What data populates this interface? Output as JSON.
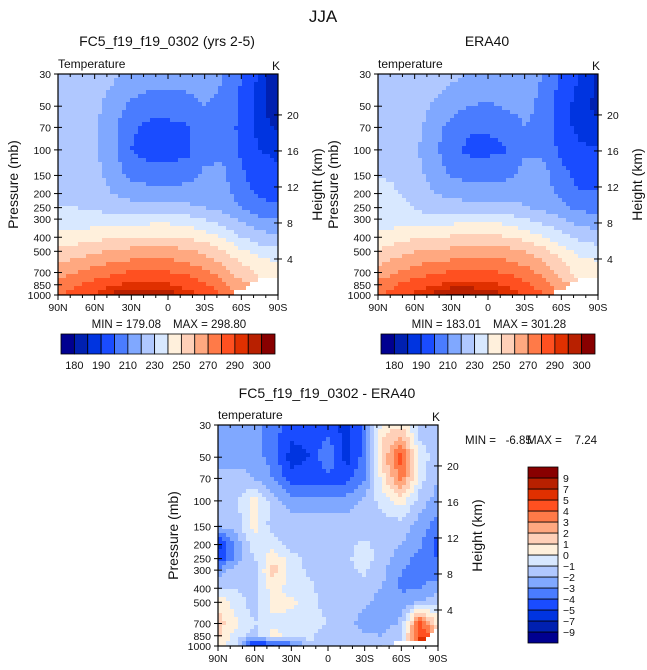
{
  "figure_title": "JJA",
  "palette": [
    "#000090",
    "#0020b0",
    "#0034e0",
    "#1a4cff",
    "#4a7cff",
    "#80a8ff",
    "#b0c8ff",
    "#d8e8ff",
    "#fff0dc",
    "#ffd0b8",
    "#ffa880",
    "#ff7a48",
    "#ff5020",
    "#e03000",
    "#b82000",
    "#880000"
  ],
  "chart_data": [
    {
      "type": "heatmap",
      "title": "FC5_f19_f19_0302 (yrs 2-5)",
      "left_label": "Temperature",
      "units": "K",
      "ylabel": "Pressure (mb)",
      "y2label": "Height (km)",
      "x_ticks": [
        {
          "lat": 90,
          "label": "90N"
        },
        {
          "lat": 60,
          "label": "60N"
        },
        {
          "lat": 30,
          "label": "30N"
        },
        {
          "lat": 0,
          "label": "0"
        },
        {
          "lat": -30,
          "label": "30S"
        },
        {
          "lat": -60,
          "label": "60S"
        },
        {
          "lat": -90,
          "label": "90S"
        }
      ],
      "y_ticks": [
        "30",
        "50",
        "70",
        "100",
        "150",
        "200",
        "250",
        "300",
        "400",
        "500",
        "700",
        "850",
        "1000"
      ],
      "y2_ticks": [
        "4",
        "8",
        "12",
        "16",
        "20"
      ],
      "min_text": "MIN = 179.08",
      "max_text": "MAX = 298.80",
      "levels": [
        180,
        185,
        190,
        200,
        210,
        220,
        230,
        240,
        250,
        260,
        270,
        280,
        290,
        295,
        300
      ],
      "colorbar_labels": [
        "180",
        "190",
        "210",
        "230",
        "250",
        "270",
        "290",
        "300"
      ],
      "colorbar_label_every": 2,
      "lats": [
        90,
        75,
        60,
        45,
        30,
        15,
        0,
        -15,
        -30,
        -45,
        -60,
        -75,
        -90
      ],
      "pressures": [
        30,
        50,
        70,
        100,
        150,
        200,
        250,
        300,
        400,
        500,
        700,
        850,
        1000
      ],
      "values": [
        [
          226,
          226,
          225,
          222,
          218,
          215,
          215,
          215,
          215,
          210,
          200,
          188,
          180
        ],
        [
          226,
          225,
          223,
          215,
          208,
          205,
          205,
          206,
          210,
          208,
          198,
          186,
          182
        ],
        [
          227,
          225,
          222,
          212,
          202,
          197,
          197,
          198,
          207,
          207,
          197,
          187,
          184
        ],
        [
          228,
          226,
          222,
          212,
          200,
          195,
          195,
          197,
          207,
          208,
          198,
          190,
          188
        ],
        [
          228,
          227,
          224,
          215,
          208,
          205,
          205,
          206,
          212,
          212,
          202,
          194,
          192
        ],
        [
          229,
          228,
          226,
          220,
          216,
          214,
          214,
          215,
          216,
          214,
          205,
          198,
          196
        ],
        [
          230,
          230,
          229,
          226,
          224,
          223,
          223,
          222,
          220,
          217,
          210,
          204,
          202
        ],
        [
          232,
          233,
          234,
          234,
          235,
          236,
          236,
          234,
          230,
          224,
          218,
          212,
          210
        ],
        [
          243,
          245,
          247,
          249,
          251,
          251,
          251,
          249,
          245,
          239,
          230,
          224,
          222
        ],
        [
          252,
          255,
          258,
          261,
          263,
          264,
          264,
          262,
          258,
          252,
          242,
          236,
          234
        ],
        [
          266,
          270,
          274,
          278,
          281,
          282,
          281,
          278,
          272,
          265,
          255,
          249,
          247
        ],
        [
          274,
          279,
          284,
          289,
          292,
          292,
          291,
          287,
          281,
          273,
          262,
          null,
          null
        ],
        [
          280,
          285,
          291,
          297,
          299,
          298,
          298,
          294,
          288,
          280,
          null,
          null,
          null
        ]
      ]
    },
    {
      "type": "heatmap",
      "title": "ERA40",
      "left_label": "temperature",
      "units": "K",
      "ylabel": "Pressure (mb)",
      "y2label": "Height (km)",
      "x_ticks": [
        {
          "lat": 90,
          "label": "90N"
        },
        {
          "lat": 60,
          "label": "60N"
        },
        {
          "lat": 30,
          "label": "30N"
        },
        {
          "lat": 0,
          "label": "0"
        },
        {
          "lat": -30,
          "label": "30S"
        },
        {
          "lat": -60,
          "label": "60S"
        },
        {
          "lat": -90,
          "label": "90S"
        }
      ],
      "y_ticks": [
        "30",
        "50",
        "70",
        "100",
        "150",
        "200",
        "250",
        "300",
        "400",
        "500",
        "700",
        "850",
        "1000"
      ],
      "y2_ticks": [
        "4",
        "8",
        "12",
        "16",
        "20"
      ],
      "min_text": "MIN = 183.01",
      "max_text": "MAX = 301.28",
      "levels": [
        180,
        185,
        190,
        200,
        210,
        220,
        230,
        240,
        250,
        260,
        270,
        280,
        290,
        295,
        300
      ],
      "colorbar_labels": [
        "180",
        "190",
        "210",
        "230",
        "250",
        "270",
        "290",
        "300"
      ],
      "colorbar_label_every": 2,
      "lats": [
        90,
        75,
        60,
        45,
        30,
        15,
        0,
        -15,
        -30,
        -45,
        -60,
        -75,
        -90
      ],
      "pressures": [
        30,
        50,
        70,
        100,
        150,
        200,
        250,
        300,
        400,
        500,
        700,
        850,
        1000
      ],
      "values": [
        [
          228.5,
          228.5,
          227.5,
          225.5,
          222.5,
          219.5,
          219.5,
          220.5,
          218.5,
          209.5,
          199.2,
          189.5,
          183.5
        ],
        [
          228.5,
          227.5,
          225.5,
          218.5,
          213.5,
          210,
          208,
          211.5,
          213.5,
          206.5,
          193.5,
          186.5,
          184
        ],
        [
          228.5,
          226.5,
          224,
          215,
          206.5,
          201.5,
          201.5,
          202.5,
          210,
          206.5,
          193.5,
          187.5,
          186
        ],
        [
          229.5,
          227.2,
          221.5,
          213.5,
          202.5,
          197.5,
          197.5,
          199.5,
          208.8,
          208.5,
          197.5,
          191.5,
          190.5
        ],
        [
          230,
          228.5,
          223.7,
          216.5,
          209.5,
          206.5,
          206.5,
          207.5,
          213.5,
          213.5,
          203.5,
          196.5,
          195.5
        ],
        [
          234.5,
          230.5,
          226.5,
          220.5,
          217.5,
          215.5,
          215.5,
          216.2,
          216.8,
          215.5,
          207,
          200.8,
          200.5
        ],
        [
          235,
          232.5,
          230,
          225.2,
          224.5,
          224.5,
          224.5,
          223.2,
          220.5,
          218.5,
          212.5,
          207.5,
          206
        ],
        [
          234.5,
          234.5,
          235.5,
          232.5,
          235.5,
          237.2,
          237.5,
          235.2,
          230.8,
          225.8,
          221,
          215.5,
          213.5
        ],
        [
          244,
          246,
          248.5,
          248.5,
          251.5,
          251.8,
          252.5,
          250.5,
          246.5,
          241,
          233.2,
          227,
          224.5
        ],
        [
          251.2,
          255.5,
          259.5,
          260.5,
          262.7,
          264.5,
          265.5,
          263.5,
          259.8,
          254.5,
          244.5,
          238,
          235.2
        ],
        [
          264.5,
          269.8,
          275,
          278.5,
          281.5,
          282.5,
          282,
          279.5,
          274.5,
          267.5,
          256.8,
          244.5,
          246.5
        ],
        [
          272.8,
          279.5,
          285.5,
          288.5,
          292.5,
          292.8,
          292.5,
          288.5,
          282.8,
          275,
          263,
          null,
          null
        ],
        [
          280,
          285.8,
          292,
          298,
          301,
          300,
          299.5,
          295.5,
          289.5,
          281,
          null,
          null,
          null
        ]
      ]
    },
    {
      "type": "heatmap",
      "title": "FC5_f19_f19_0302 - ERA40",
      "left_label": "temperature",
      "units": "K",
      "ylabel": "Pressure (mb)",
      "y2label": "Height (km)",
      "x_ticks": [
        {
          "lat": 90,
          "label": "90N"
        },
        {
          "lat": 60,
          "label": "60N"
        },
        {
          "lat": 30,
          "label": "30N"
        },
        {
          "lat": 0,
          "label": "0"
        },
        {
          "lat": -30,
          "label": "30S"
        },
        {
          "lat": -60,
          "label": "60S"
        },
        {
          "lat": -90,
          "label": "90S"
        }
      ],
      "y_ticks": [
        "30",
        "50",
        "70",
        "100",
        "150",
        "200",
        "250",
        "300",
        "400",
        "500",
        "700",
        "850",
        "1000"
      ],
      "y2_ticks": [
        "4",
        "8",
        "12",
        "16",
        "20"
      ],
      "min_text": "MIN =   -6.85",
      "max_text": "MAX =    7.24",
      "levels": [
        -9,
        -7,
        -5,
        -4,
        -3,
        -2,
        -1,
        0,
        1,
        2,
        3,
        4,
        5,
        7,
        9
      ],
      "colorbar_labels": [
        "−9",
        "−7",
        "−5",
        "−4",
        "−3",
        "−2",
        "−1",
        "0",
        "1",
        "2",
        "3",
        "4",
        "5",
        "7",
        "9"
      ],
      "colorbar_label_every": 1,
      "lats": [
        90,
        75,
        60,
        45,
        30,
        15,
        0,
        -15,
        -30,
        -45,
        -60,
        -75,
        -90
      ],
      "pressures": [
        30,
        50,
        70,
        100,
        150,
        200,
        250,
        300,
        400,
        500,
        700,
        850,
        1000
      ],
      "values": [
        [
          -2.5,
          -2.5,
          -2.5,
          -3.5,
          -4.5,
          -4.5,
          -4.5,
          -5.5,
          -3.5,
          0.5,
          0.8,
          -1.5,
          -1.5
        ],
        [
          -2.5,
          -2.5,
          -2.5,
          -3.5,
          -5.5,
          -5,
          -3,
          -5.5,
          -3.5,
          1.5,
          4.5,
          -0.5,
          -1.5
        ],
        [
          -1.5,
          -1.5,
          -2,
          -3,
          -4.5,
          -4.5,
          -4.5,
          -4.5,
          -3,
          0.5,
          3.5,
          -0.5,
          -2
        ],
        [
          -1.5,
          -1.2,
          0.5,
          -1.5,
          -2.5,
          -2.5,
          -2.5,
          -2.5,
          -1.8,
          -0.5,
          0.5,
          -1.5,
          -2.5
        ],
        [
          -2,
          -1.5,
          0.3,
          -1.5,
          -1.5,
          -1.5,
          -1.5,
          -1.5,
          -1.5,
          -1.5,
          -1.5,
          -2.5,
          -3.5
        ],
        [
          -5.5,
          -2.5,
          -0.5,
          -0.5,
          -1.5,
          -1.5,
          -1.5,
          -1.2,
          -0.8,
          -1.5,
          -2,
          -2.8,
          -4.5
        ],
        [
          -5,
          -2.5,
          -1,
          0.8,
          -0.5,
          -1.5,
          -1.5,
          -1.2,
          -0.5,
          -1.5,
          -2.5,
          -3.5,
          -4
        ],
        [
          -2.5,
          -1.5,
          -1.5,
          1.5,
          -0.5,
          -1.2,
          -1.5,
          -1.2,
          -0.8,
          -1.8,
          -3,
          -3.5,
          -3.5
        ],
        [
          -1,
          -1,
          -1.5,
          0.5,
          -0.5,
          -0.8,
          -1.5,
          -1.5,
          -1.5,
          -2,
          -3.2,
          -3,
          -2.5
        ],
        [
          0.8,
          -0.5,
          -1.5,
          0.5,
          0.3,
          -0.5,
          -1.5,
          -1.5,
          -1.8,
          -2.5,
          -2.5,
          -2,
          -1.2
        ],
        [
          1.5,
          0.2,
          -1,
          -0.5,
          -0.5,
          -0.5,
          -1,
          -1.5,
          -2.5,
          -2.5,
          -1.8,
          4.5,
          0.5
        ],
        [
          1.2,
          -0.5,
          -1.5,
          0.5,
          -0.5,
          -0.8,
          -1.5,
          -1.5,
          -1.8,
          -2,
          -1,
          5,
          null
        ],
        [
          0.5,
          -0.8,
          -6,
          -5,
          -4,
          -1,
          -1.5,
          -1.5,
          -1.5,
          -1,
          null,
          null,
          null
        ]
      ]
    }
  ]
}
